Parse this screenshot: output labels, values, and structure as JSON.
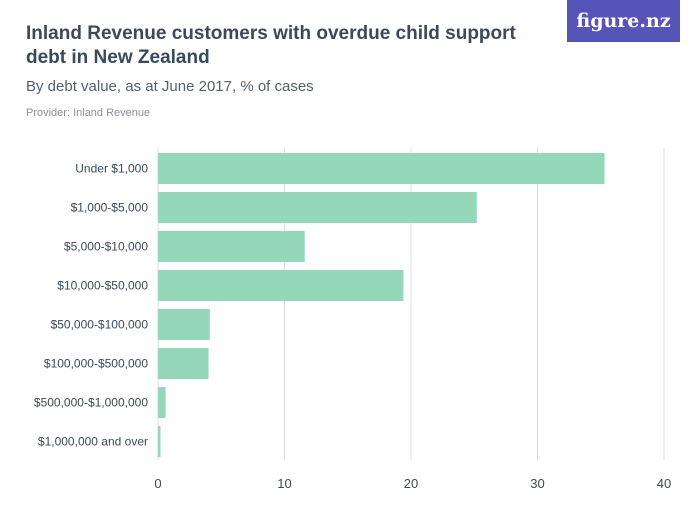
{
  "header": {
    "title": "Inland Revenue customers with overdue child support debt in New Zealand",
    "subtitle": "By debt value, as at June 2017, % of cases",
    "provider": "Provider: Inland Revenue",
    "logo": "figure.nz"
  },
  "colors": {
    "bar": "#94d8b9",
    "grid": "#dcdcdc",
    "text": "#3a4a5c",
    "logo_bg": "#5754b8"
  },
  "chart_data": {
    "type": "bar",
    "orientation": "horizontal",
    "categories": [
      "Under $1,000",
      "$1,000-$5,000",
      "$5,000-$10,000",
      "$10,000-$50,000",
      "$50,000-$100,000",
      "$100,000-$500,000",
      "$500,000-$1,000,000",
      "$1,000,000 and over"
    ],
    "values": [
      35.3,
      25.2,
      11.6,
      19.4,
      4.1,
      4.0,
      0.6,
      0.2
    ],
    "xlim": [
      0,
      40
    ],
    "xticks": [
      0,
      10,
      20,
      30,
      40
    ],
    "grid": true,
    "xlabel": "",
    "ylabel": ""
  }
}
